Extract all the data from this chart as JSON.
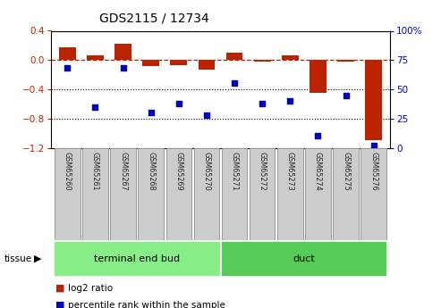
{
  "title": "GDS2115 / 12734",
  "samples": [
    "GSM65260",
    "GSM65261",
    "GSM65267",
    "GSM65268",
    "GSM65269",
    "GSM65270",
    "GSM65271",
    "GSM65272",
    "GSM65273",
    "GSM65274",
    "GSM65275",
    "GSM65276"
  ],
  "log2_ratio": [
    0.18,
    0.07,
    0.22,
    -0.08,
    -0.07,
    -0.13,
    0.1,
    -0.02,
    0.07,
    -0.45,
    -0.02,
    -1.1
  ],
  "percentile_rank": [
    68,
    35,
    68,
    30,
    38,
    28,
    55,
    38,
    40,
    10,
    45,
    2
  ],
  "ylim_left": [
    -1.2,
    0.4
  ],
  "ylim_right": [
    0,
    100
  ],
  "yticks_left": [
    0.4,
    0.0,
    -0.4,
    -0.8,
    -1.2
  ],
  "yticks_right": [
    100,
    75,
    50,
    25,
    0
  ],
  "dotted_lines": [
    -0.4,
    -0.8
  ],
  "bar_color": "#bb2200",
  "dot_color": "#0000bb",
  "sample_box_color": "#cccccc",
  "sample_box_edge": "#999999",
  "groups": [
    {
      "label": "terminal end bud",
      "samples": 6,
      "color": "#88ee88"
    },
    {
      "label": "duct",
      "samples": 6,
      "color": "#55cc55"
    }
  ],
  "legend_items": [
    {
      "color": "#bb2200",
      "label": "log2 ratio"
    },
    {
      "color": "#0000bb",
      "label": "percentile rank within the sample"
    }
  ],
  "background_color": "#ffffff"
}
